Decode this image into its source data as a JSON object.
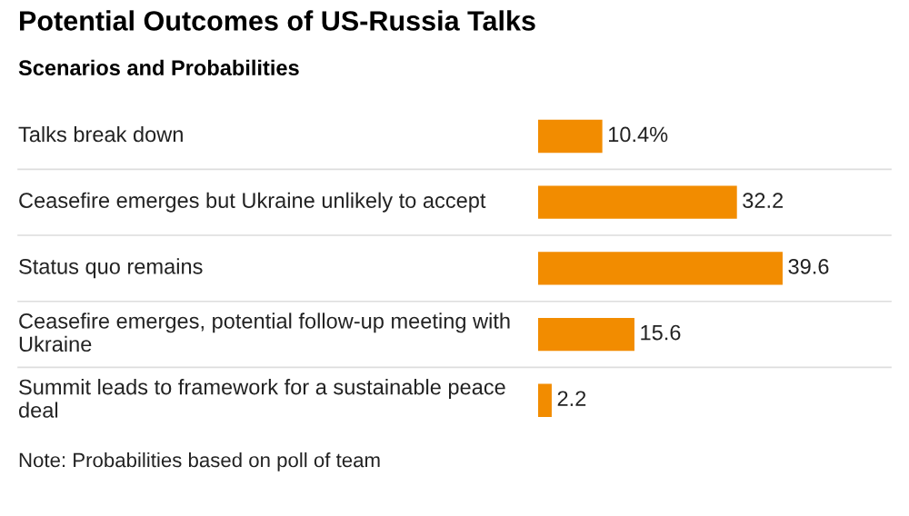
{
  "chart_data": {
    "type": "bar",
    "orientation": "horizontal",
    "title": "Potential Outcomes of US-Russia Talks",
    "subtitle": "Scenarios and Probabilities",
    "categories": [
      "Talks break down",
      "Ceasefire emerges but Ukraine unlikely to accept",
      "Status quo remains",
      "Ceasefire emerges, potential follow-up meeting with\nUkraine",
      "Summit leads to framework for a sustainable peace\ndeal"
    ],
    "values": [
      10.4,
      32.2,
      39.6,
      15.6,
      2.2
    ],
    "value_labels": [
      "10.4%",
      "32.2",
      "39.6",
      "15.6",
      "2.2"
    ],
    "color": "#f28c00",
    "annotations": [
      "Note: Probabilities based on poll of team"
    ]
  }
}
